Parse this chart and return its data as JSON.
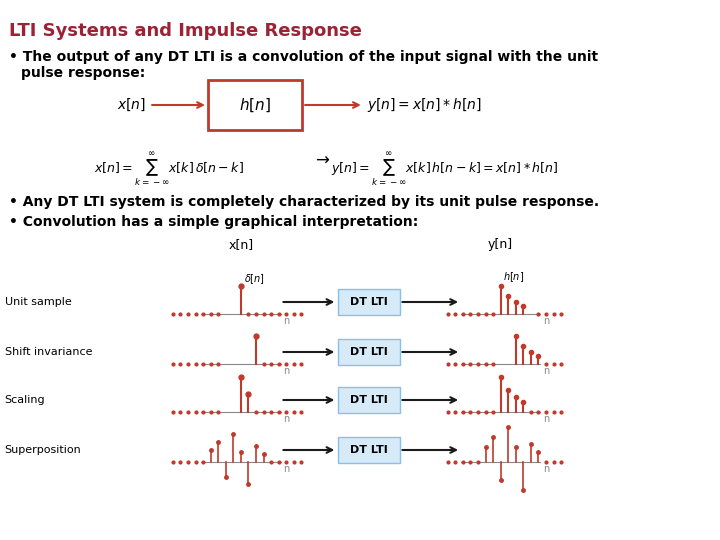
{
  "title": "LTI Systems and Impulse Response",
  "title_color": "#9B2335",
  "bg_color": "#FFFFFF",
  "bullet1": "The output of any DT LTI is a convolution of the input signal with the unit\n   pulse response:",
  "bullet2": "Any DT LTI system is completely characterized by its unit pulse response.",
  "bullet3": "Convolution has a simple graphical interpretation:",
  "row_labels": [
    "Unit sample",
    "Shift invariance",
    "Scaling",
    "Superposition"
  ],
  "box_fill": "#D6EAF8",
  "box_edge": "#85C1E9",
  "signal_color": "#C0392B",
  "axis_color": "#555555",
  "text_color": "#000000",
  "arrow_color": "#1A1A1A"
}
